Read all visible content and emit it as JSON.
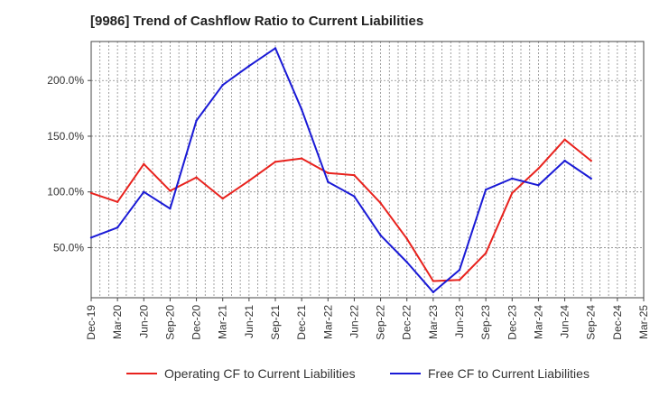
{
  "chart_data": {
    "type": "line",
    "title": "[9986]  Trend of Cashflow Ratio to Current Liabilities",
    "xlabel": "",
    "ylabel": "",
    "x_ticks": [
      "Dec-19",
      "Mar-20",
      "Jun-20",
      "Sep-20",
      "Dec-20",
      "Mar-21",
      "Jun-21",
      "Sep-21",
      "Dec-21",
      "Mar-22",
      "Jun-22",
      "Sep-22",
      "Dec-22",
      "Mar-23",
      "Jun-23",
      "Sep-23",
      "Dec-23",
      "Mar-24",
      "Jun-24",
      "Sep-24",
      "Dec-24",
      "Mar-25"
    ],
    "y_ticks": [
      {
        "value": 50,
        "label": "50.0%"
      },
      {
        "value": 100,
        "label": "100.0%"
      },
      {
        "value": 150,
        "label": "150.0%"
      },
      {
        "value": 200,
        "label": "200.0%"
      }
    ],
    "ylim": [
      5,
      235
    ],
    "grid": true,
    "legend_position": "bottom",
    "series": [
      {
        "name": "Operating CF to Current Liabilities",
        "color": "#e8221d",
        "values": [
          {
            "x": "Dec-19",
            "y": 99
          },
          {
            "x": "Mar-20",
            "y": 91
          },
          {
            "x": "Jun-20",
            "y": 125
          },
          {
            "x": "Sep-20",
            "y": 101
          },
          {
            "x": "Dec-20",
            "y": 113
          },
          {
            "x": "Mar-21",
            "y": 94
          },
          {
            "x": "Jun-21",
            "y": 110
          },
          {
            "x": "Sep-21",
            "y": 127
          },
          {
            "x": "Dec-21",
            "y": 130
          },
          {
            "x": "Mar-22",
            "y": 117
          },
          {
            "x": "Jun-22",
            "y": 115
          },
          {
            "x": "Sep-22",
            "y": 90
          },
          {
            "x": "Dec-22",
            "y": 58
          },
          {
            "x": "Mar-23",
            "y": 20
          },
          {
            "x": "Jun-23",
            "y": 21
          },
          {
            "x": "Sep-23",
            "y": 45
          },
          {
            "x": "Dec-23",
            "y": 99
          },
          {
            "x": "Mar-24",
            "y": 121
          },
          {
            "x": "Jun-24",
            "y": 147
          },
          {
            "x": "Sep-24",
            "y": 128
          }
        ]
      },
      {
        "name": "Free CF to Current Liabilities",
        "color": "#1a1ad6",
        "values": [
          {
            "x": "Dec-19",
            "y": 59
          },
          {
            "x": "Mar-20",
            "y": 68
          },
          {
            "x": "Jun-20",
            "y": 100
          },
          {
            "x": "Sep-20",
            "y": 85
          },
          {
            "x": "Dec-20",
            "y": 164
          },
          {
            "x": "Mar-21",
            "y": 196
          },
          {
            "x": "Jun-21",
            "y": 213
          },
          {
            "x": "Sep-21",
            "y": 229
          },
          {
            "x": "Dec-21",
            "y": 174
          },
          {
            "x": "Mar-22",
            "y": 109
          },
          {
            "x": "Jun-22",
            "y": 96
          },
          {
            "x": "Sep-22",
            "y": 61
          },
          {
            "x": "Dec-22",
            "y": 37
          },
          {
            "x": "Mar-23",
            "y": 10
          },
          {
            "x": "Jun-23",
            "y": 30
          },
          {
            "x": "Sep-23",
            "y": 102
          },
          {
            "x": "Dec-23",
            "y": 112
          },
          {
            "x": "Mar-24",
            "y": 106
          },
          {
            "x": "Jun-24",
            "y": 128
          },
          {
            "x": "Sep-24",
            "y": 112
          }
        ]
      }
    ]
  }
}
